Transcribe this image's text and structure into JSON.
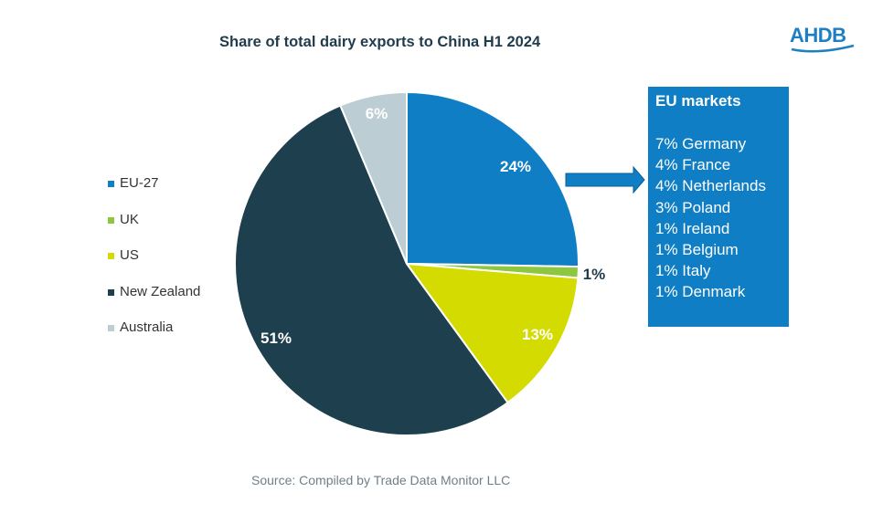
{
  "chart_data": {
    "type": "pie",
    "title": "Share of total dairy exports to China H1 2024",
    "slices": [
      {
        "label": "EU-27",
        "value": 24,
        "display": "24%",
        "color": "#0f7ec4"
      },
      {
        "label": "UK",
        "value": 1,
        "display": "1%",
        "color": "#8dc63f"
      },
      {
        "label": "US",
        "value": 13,
        "display": "13%",
        "color": "#d4db00"
      },
      {
        "label": "New Zealand",
        "value": 51,
        "display": "51%",
        "color": "#1e3f4d"
      },
      {
        "label": "Australia",
        "value": 6,
        "display": "6%",
        "color": "#bccdd3"
      }
    ],
    "legend_position": "left",
    "start": "12 o'clock, clockwise"
  },
  "callout": {
    "title": "EU markets",
    "items": [
      "7% Germany",
      "4% France",
      "4% Netherlands",
      "3% Poland",
      "1% Ireland",
      "1% Belgium",
      "1% Italy",
      "1% Denmark"
    ]
  },
  "logo": {
    "text": "AHDB"
  },
  "source": "Source: Compiled by Trade Data Monitor LLC",
  "colors": {
    "label_dark": "#1f3c4d",
    "arrow": "#0f7ec4"
  }
}
